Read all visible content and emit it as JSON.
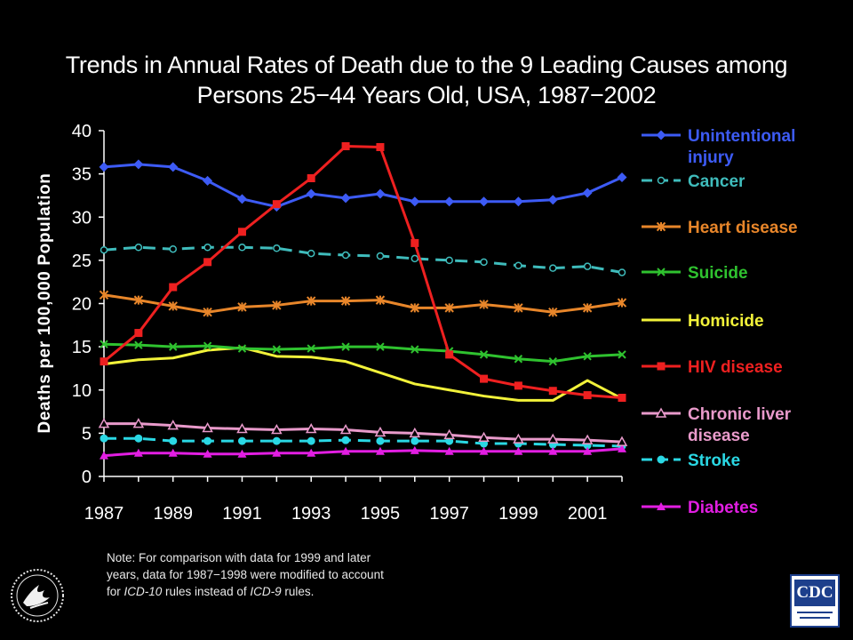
{
  "title_lines": [
    "Trends in Annual Rates of Death due to the 9 Leading Causes among",
    "Persons 25−44 Years Old, USA, 1987−2002"
  ],
  "note": {
    "line1": "Note: For comparison with data for 1999 and later",
    "line2": "years, data for 1987−1998 were modified to account",
    "line3_pre": "for ",
    "line3_icd10": "ICD-10",
    "line3_mid": " rules instead of ",
    "line3_icd9": "ICD-9",
    "line3_post": " rules."
  },
  "logos": {
    "cdc": "CDC",
    "hhs_seal_icon": "hhs-eagle-seal-icon"
  },
  "colors": {
    "background": "#000000",
    "text": "#ffffff"
  },
  "chart_data": {
    "type": "line",
    "title": "Trends in Annual Rates of Death due to the 9 Leading Causes among Persons 25−44 Years Old, USA, 1987−2002",
    "xlabel": "",
    "ylabel": "Deaths per 100,000 Population",
    "xlim": [
      1987,
      2002
    ],
    "ylim": [
      0,
      40
    ],
    "x_ticks": [
      1987,
      1989,
      1991,
      1993,
      1995,
      1997,
      1999,
      2001
    ],
    "y_ticks": [
      0,
      5,
      10,
      15,
      20,
      25,
      30,
      35,
      40
    ],
    "grid": false,
    "legend_position": "right",
    "x": [
      1987,
      1988,
      1989,
      1990,
      1991,
      1992,
      1993,
      1994,
      1995,
      1996,
      1997,
      1998,
      1999,
      2000,
      2001,
      2002
    ],
    "series": [
      {
        "name": "Unintentional injury",
        "legend_lines": [
          "Unintentional",
          "injury"
        ],
        "color": "#3d5bf5",
        "marker": "diamond",
        "dash": false,
        "values": [
          35.8,
          36.1,
          35.8,
          34.2,
          32.1,
          31.2,
          32.7,
          32.2,
          32.7,
          31.8,
          31.8,
          31.8,
          31.8,
          32.0,
          32.8,
          34.6
        ]
      },
      {
        "name": "Cancer",
        "legend_lines": [
          "Cancer"
        ],
        "color": "#3fbcbc",
        "marker": "open-circle",
        "dash": true,
        "values": [
          26.2,
          26.5,
          26.3,
          26.5,
          26.5,
          26.4,
          25.8,
          25.6,
          25.5,
          25.2,
          25.0,
          24.8,
          24.4,
          24.1,
          24.3,
          23.6
        ]
      },
      {
        "name": "Heart disease",
        "legend_lines": [
          "Heart disease"
        ],
        "color": "#e8862a",
        "marker": "asterisk",
        "dash": false,
        "values": [
          21.0,
          20.4,
          19.7,
          19.0,
          19.6,
          19.8,
          20.3,
          20.3,
          20.4,
          19.5,
          19.5,
          19.9,
          19.5,
          19.0,
          19.5,
          20.1
        ]
      },
      {
        "name": "Suicide",
        "legend_lines": [
          "Suicide"
        ],
        "color": "#2fc22f",
        "marker": "x",
        "dash": false,
        "values": [
          15.3,
          15.2,
          15.0,
          15.1,
          14.8,
          14.7,
          14.8,
          15.0,
          15.0,
          14.7,
          14.5,
          14.1,
          13.6,
          13.3,
          13.9,
          14.1
        ]
      },
      {
        "name": "Homicide",
        "legend_lines": [
          "Homicide"
        ],
        "color": "#f2f23a",
        "marker": "none",
        "dash": false,
        "values": [
          13.0,
          13.5,
          13.7,
          14.6,
          14.9,
          13.9,
          13.8,
          13.3,
          12.0,
          10.7,
          10.0,
          9.3,
          8.8,
          8.8,
          11.1,
          9.0
        ]
      },
      {
        "name": "HIV disease",
        "legend_lines": [
          "HIV disease"
        ],
        "color": "#ee2020",
        "marker": "square",
        "dash": false,
        "values": [
          13.3,
          16.6,
          21.9,
          24.8,
          28.3,
          31.5,
          34.5,
          38.2,
          38.1,
          27.0,
          14.1,
          11.3,
          10.5,
          9.9,
          9.4,
          9.1
        ]
      },
      {
        "name": "Chronic liver disease",
        "legend_lines": [
          "Chronic liver",
          "disease"
        ],
        "color": "#e99acb",
        "marker": "open-triangle",
        "dash": false,
        "values": [
          6.1,
          6.1,
          5.9,
          5.6,
          5.5,
          5.4,
          5.5,
          5.4,
          5.1,
          5.0,
          4.8,
          4.5,
          4.3,
          4.3,
          4.2,
          4.0
        ]
      },
      {
        "name": "Stroke",
        "legend_lines": [
          "Stroke"
        ],
        "color": "#2ad8e4",
        "marker": "circle",
        "dash": true,
        "values": [
          4.4,
          4.4,
          4.1,
          4.1,
          4.1,
          4.1,
          4.1,
          4.2,
          4.1,
          4.1,
          4.1,
          3.8,
          3.8,
          3.7,
          3.6,
          3.5
        ]
      },
      {
        "name": "Diabetes",
        "legend_lines": [
          "Diabetes"
        ],
        "color": "#e21ee2",
        "marker": "triangle",
        "dash": false,
        "values": [
          2.4,
          2.7,
          2.7,
          2.6,
          2.6,
          2.7,
          2.7,
          2.9,
          2.9,
          3.0,
          2.9,
          2.9,
          2.9,
          2.9,
          2.9,
          3.2
        ]
      }
    ]
  }
}
